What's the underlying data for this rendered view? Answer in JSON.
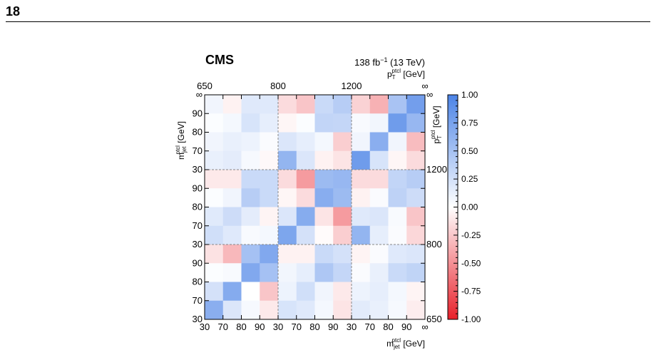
{
  "page": {
    "number": "18"
  },
  "chart_data": {
    "type": "heatmap",
    "experiment": "CMS",
    "lumi_label": "138 fb",
    "lumi_exponent": "−1",
    "energy_label": " (13 TeV)",
    "top_axis_label": {
      "main": "p",
      "sub": "T",
      "sup": "ptcl",
      "unit": " [GeV]"
    },
    "right_axis_label": {
      "main": "p",
      "sub": "T",
      "sup": "ptcl",
      "unit": " [GeV]"
    },
    "left_axis_label": {
      "main": "m",
      "sub": "jet",
      "sup": "ptcl",
      "unit": " [GeV]"
    },
    "bottom_axis_label": {
      "main": "m",
      "sub": "jet",
      "sup": "ptcl",
      "unit": " [GeV]"
    },
    "pt_edges": [
      "650",
      "800",
      "1200",
      "∞"
    ],
    "right_pt_ticks": [
      "650",
      "800",
      "1200",
      "∞"
    ],
    "mass_ticks_bottom": [
      "30",
      "70",
      "80",
      "90",
      "30",
      "70",
      "80",
      "90",
      "30",
      "70",
      "80",
      "90",
      "∞"
    ],
    "mass_ticks_left": [
      "30",
      "70",
      "80",
      "90",
      "30",
      "70",
      "80",
      "90",
      "30",
      "70",
      "80",
      "90",
      "∞"
    ],
    "colorbar": {
      "min": -1.0,
      "max": 1.0,
      "ticks": [
        "1.00",
        "0.75",
        "0.50",
        "0.25",
        "0.00",
        "-0.25",
        "-0.50",
        "-0.75",
        "-1.00"
      ],
      "negative_color": "#e8202a",
      "positive_color": "#4b83e6",
      "zero_color": "#ffffff"
    },
    "matrix_row_order": "top-to-bottom",
    "values": [
      [
        0.08,
        -0.06,
        0.18,
        0.18,
        -0.16,
        -0.26,
        0.3,
        0.4,
        -0.2,
        -0.35,
        0.48,
        0.78
      ],
      [
        0.02,
        0.06,
        0.22,
        0.14,
        -0.04,
        0.02,
        0.34,
        0.33,
        0.04,
        0.07,
        0.8,
        0.58
      ],
      [
        0.08,
        0.12,
        0.1,
        0.03,
        0.2,
        0.14,
        0.06,
        -0.22,
        0.08,
        0.65,
        0.08,
        -0.3
      ],
      [
        0.12,
        0.15,
        0.05,
        -0.03,
        0.6,
        0.2,
        -0.06,
        -0.12,
        0.8,
        0.22,
        -0.04,
        -0.16
      ],
      [
        -0.1,
        -0.1,
        0.3,
        0.3,
        -0.16,
        -0.45,
        0.55,
        0.58,
        -0.16,
        -0.16,
        0.34,
        0.4
      ],
      [
        0.02,
        0.08,
        0.4,
        0.3,
        -0.04,
        -0.16,
        0.66,
        0.55,
        -0.06,
        0.03,
        0.36,
        0.28
      ],
      [
        0.17,
        0.28,
        0.15,
        -0.05,
        0.2,
        0.67,
        -0.12,
        -0.45,
        0.18,
        0.2,
        0.04,
        -0.26
      ],
      [
        0.26,
        0.18,
        0.04,
        0.06,
        0.72,
        0.24,
        -0.02,
        -0.22,
        0.6,
        0.14,
        0.03,
        -0.18
      ],
      [
        -0.13,
        -0.32,
        0.5,
        0.7,
        -0.06,
        -0.06,
        0.3,
        0.24,
        -0.05,
        0.03,
        0.18,
        0.2
      ],
      [
        0.02,
        0.04,
        0.7,
        0.5,
        0.07,
        0.14,
        0.45,
        0.33,
        0.03,
        0.12,
        0.3,
        0.35
      ],
      [
        0.24,
        0.68,
        0.0,
        -0.26,
        0.1,
        0.26,
        0.08,
        -0.1,
        0.1,
        0.14,
        0.06,
        -0.05
      ],
      [
        0.65,
        0.2,
        0.05,
        -0.1,
        0.22,
        0.18,
        0.06,
        -0.12,
        0.16,
        0.12,
        0.05,
        -0.08
      ]
    ]
  }
}
